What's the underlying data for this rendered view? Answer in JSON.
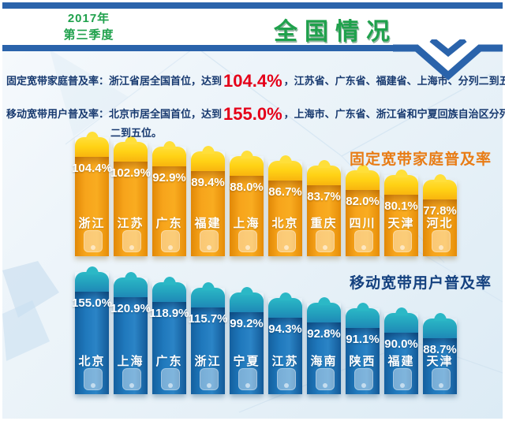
{
  "header": {
    "period_year": "2017年",
    "period_quarter": "第三季度",
    "title": "全国情况"
  },
  "summary": {
    "fixed": {
      "prefix": "固定宽带家庭普及率：浙江省居全国首位，达到",
      "highlight": "104.4%",
      "suffix": "，江苏省、广东省、福建省、上海市、分列二到五位。"
    },
    "mobile": {
      "prefix": "移动宽带用户普及率：北京市居全国首位，达到",
      "highlight": "155.0%",
      "suffix": "，上海市、广东省、浙江省和宁夏回族自治区分列",
      "suffix2": "二到五位。"
    }
  },
  "chart_data": [
    {
      "type": "bar",
      "title": "固定宽带家庭普及率",
      "unit": "%",
      "theme": "orange",
      "categories": [
        "浙江",
        "江苏",
        "广东",
        "福建",
        "上海",
        "北京",
        "重庆",
        "四川",
        "天津",
        "河北"
      ],
      "values": [
        104.4,
        102.9,
        92.9,
        89.4,
        88.0,
        86.7,
        83.7,
        82.0,
        80.1,
        77.8
      ],
      "value_labels_shown": true,
      "bar_body_color": "#F2990F",
      "bar_cap_color": "#FFD215",
      "title_color": "#E87C15",
      "label_color": "#FFFFFF",
      "legend_position": "top-right"
    },
    {
      "type": "bar",
      "title": "移动宽带用户普及率",
      "unit": "%",
      "theme": "blue",
      "categories": [
        "北京",
        "上海",
        "广东",
        "浙江",
        "宁夏",
        "江苏",
        "海南",
        "陕西",
        "福建",
        "天津"
      ],
      "values": [
        155.0,
        120.9,
        118.9,
        115.7,
        99.2,
        94.3,
        92.8,
        91.1,
        90.0,
        88.7
      ],
      "value_labels_shown": true,
      "bar_body_color": "#1C74B6",
      "bar_cap_color": "#1FA9BE",
      "title_color": "#14417F",
      "label_color": "#FFFFFF",
      "legend_position": "top-right"
    }
  ],
  "colors": {
    "band_blue": "#2A63AB",
    "title_green": "#1FA14C",
    "text_navy": "#17396F",
    "highlight_red": "#E50019",
    "orange_title": "#E87C15",
    "blue_title": "#14417F"
  }
}
